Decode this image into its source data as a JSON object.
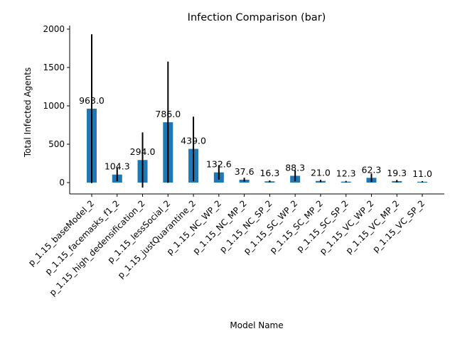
{
  "chart_data": {
    "type": "bar",
    "title": "Infection Comparison (bar)",
    "xlabel": "Model Name",
    "ylabel": "Total Infected Agents",
    "ylim": [
      -150,
      2030
    ],
    "yticks": [
      0,
      500,
      1000,
      1500,
      2000
    ],
    "grid": false,
    "bar_color": "#1f77b4",
    "error_color": "#000000",
    "categories": [
      "p_1.15_baseModel_2",
      "p_1.15_facemasks_f1_2",
      "p_1.15_high_dedensification_2",
      "p_1.15_lessSocial_2",
      "p_1.15_justQuarantine_2",
      "p_1.15_NC_WP_2",
      "p_1.15_NC_MP_2",
      "p_1.15_NC_SP_2",
      "p_1.15_SC_WP_2",
      "p_1.15_SC_MP_2",
      "p_1.15_SC_SP_2",
      "p_1.15_VC_WP_2",
      "p_1.15_VC_MP_2",
      "p_1.15_VC_SP_2"
    ],
    "values": [
      963.0,
      104.3,
      294.0,
      786.0,
      439.0,
      132.6,
      37.6,
      16.3,
      88.3,
      21.0,
      12.3,
      62.3,
      19.3,
      11.0
    ],
    "value_labels": [
      "963.0",
      "104.3",
      "294.0",
      "786.0",
      "439.0",
      "132.6",
      "37.6",
      "16.3",
      "88.3",
      "21.0",
      "12.3",
      "62.3",
      "19.3",
      "11.0"
    ],
    "errors": [
      970,
      85,
      360,
      790,
      420,
      95,
      25,
      12,
      70,
      15,
      9,
      55,
      15,
      8
    ]
  }
}
